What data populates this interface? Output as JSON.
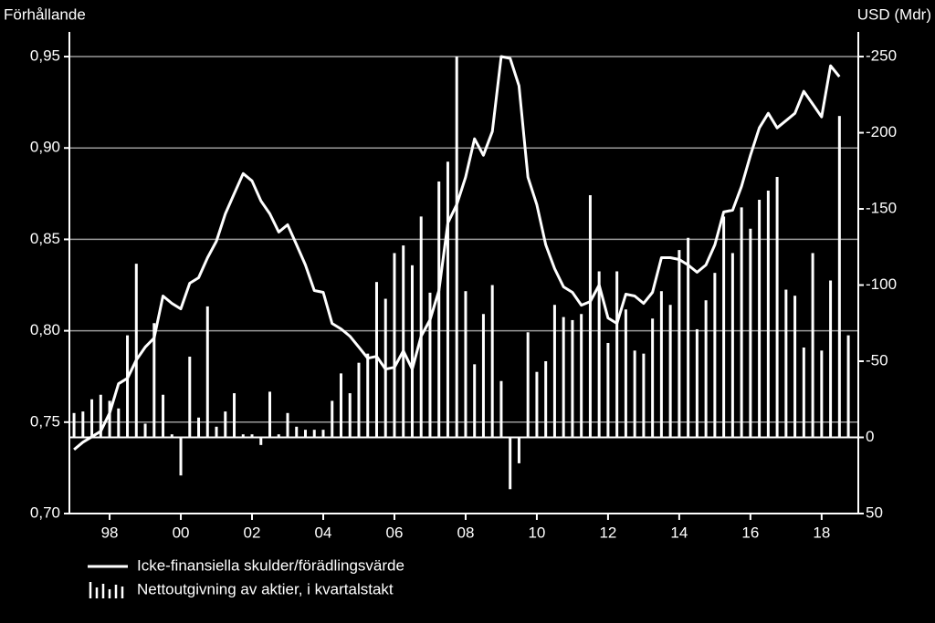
{
  "chart_data": {
    "type": "bar-line",
    "y_label": "Förhållande",
    "y2_label": "USD (Mdr)",
    "x": [
      1997,
      1997.25,
      1997.5,
      1997.75,
      1998,
      1998.25,
      1998.5,
      1998.75,
      1999,
      1999.25,
      1999.5,
      1999.75,
      2000,
      2000.25,
      2000.5,
      2000.75,
      2001,
      2001.25,
      2001.5,
      2001.75,
      2002,
      2002.25,
      2002.5,
      2002.75,
      2003,
      2003.25,
      2003.5,
      2003.75,
      2004,
      2004.25,
      2004.5,
      2004.75,
      2005,
      2005.25,
      2005.5,
      2005.75,
      2006,
      2006.25,
      2006.5,
      2006.75,
      2007,
      2007.25,
      2007.5,
      2007.75,
      2008,
      2008.25,
      2008.5,
      2008.75,
      2009,
      2009.25,
      2009.5,
      2009.75,
      2010,
      2010.25,
      2010.5,
      2010.75,
      2011,
      2011.25,
      2011.5,
      2011.75,
      2012,
      2012.25,
      2012.5,
      2012.75,
      2013,
      2013.25,
      2013.5,
      2013.75,
      2014,
      2014.25,
      2014.5,
      2014.75,
      2015,
      2015.25,
      2015.5,
      2015.75,
      2016,
      2016.25,
      2016.5,
      2016.75,
      2017,
      2017.25,
      2017.5,
      2017.75,
      2018,
      2018.25,
      2018.5,
      2018.75
    ],
    "series": [
      {
        "name": "Icke-finansiella skulder/förädlingsvärde",
        "type": "line",
        "color": "#ffffff",
        "values": [
          0.735,
          0.739,
          0.742,
          0.745,
          0.755,
          0.771,
          0.774,
          0.784,
          0.791,
          0.796,
          0.819,
          0.815,
          0.812,
          0.826,
          0.829,
          0.84,
          0.849,
          0.864,
          0.875,
          0.886,
          0.882,
          0.871,
          0.864,
          0.854,
          0.858,
          0.847,
          0.836,
          0.822,
          0.821,
          0.804,
          0.801,
          0.797,
          0.791,
          0.785,
          0.786,
          0.779,
          0.78,
          0.789,
          0.779,
          0.797,
          0.806,
          0.822,
          0.859,
          0.869,
          0.884,
          0.905,
          0.896,
          0.909,
          0.95,
          0.949,
          0.934,
          0.884,
          0.869,
          0.847,
          0.834,
          0.824,
          0.821,
          0.814,
          0.816,
          0.825,
          0.807,
          0.804,
          0.82,
          0.819,
          0.815,
          0.821,
          0.84,
          0.84,
          0.839,
          0.836,
          0.832,
          0.836,
          0.847,
          0.865,
          0.866,
          0.879,
          0.896,
          0.911,
          0.919,
          0.911,
          0.915,
          0.919,
          0.931,
          0.924,
          0.917,
          0.945,
          0.939,
          null
        ]
      },
      {
        "name": "Nettoutgivning av aktier, i kvartalstakt",
        "type": "bar",
        "axis": "y2",
        "color": "#ffffff",
        "values": [
          -16,
          -17,
          -25,
          -28,
          -24,
          -19,
          -67,
          -114,
          -9,
          -75,
          -28,
          -2,
          25,
          -53,
          -13,
          -86,
          -7,
          -17,
          -29,
          -2,
          -2,
          5,
          -30,
          -2,
          -16,
          -7,
          -5,
          -5,
          -5,
          -24,
          -42,
          -29,
          -49,
          -55,
          -102,
          -91,
          -121,
          -126,
          -113,
          -145,
          -95,
          -168,
          -181,
          -250,
          -96,
          -48,
          -81,
          -100,
          -37,
          34,
          17,
          -69,
          -43,
          -50,
          -87,
          -79,
          -77,
          -81,
          -159,
          -109,
          -62,
          -109,
          -84,
          -57,
          -55,
          -78,
          -96,
          -87,
          -123,
          -131,
          -71,
          -90,
          -108,
          -145,
          -121,
          -151,
          -137,
          -156,
          -162,
          -171,
          -97,
          -93,
          -59,
          -121,
          -57,
          -103,
          -211,
          -67
        ]
      }
    ],
    "xlim": [
      1996.87,
      2019.03
    ],
    "xticks": [
      {
        "value": 1998,
        "label": "98"
      },
      {
        "value": 2000,
        "label": "00"
      },
      {
        "value": 2002,
        "label": "02"
      },
      {
        "value": 2004,
        "label": "04"
      },
      {
        "value": 2006,
        "label": "06"
      },
      {
        "value": 2008,
        "label": "08"
      },
      {
        "value": 2010,
        "label": "10"
      },
      {
        "value": 2012,
        "label": "12"
      },
      {
        "value": 2014,
        "label": "14"
      },
      {
        "value": 2016,
        "label": "16"
      },
      {
        "value": 2018,
        "label": "18"
      }
    ],
    "ylim": [
      0.7,
      0.96
    ],
    "yticks": [
      {
        "value": 0.7,
        "label": "0,70"
      },
      {
        "value": 0.75,
        "label": "0,75"
      },
      {
        "value": 0.8,
        "label": "0,80"
      },
      {
        "value": 0.85,
        "label": "0,85"
      },
      {
        "value": 0.9,
        "label": "0,90"
      },
      {
        "value": 0.95,
        "label": "0,95"
      }
    ],
    "y2lim": [
      50,
      -262
    ],
    "y2ticks": [
      -250,
      -200,
      -150,
      -100,
      -50,
      0,
      50
    ],
    "grid": true
  }
}
